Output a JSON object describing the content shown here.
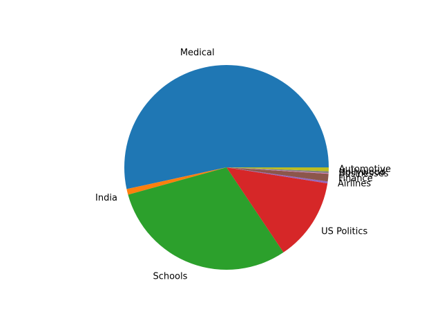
{
  "chart_data": {
    "type": "pie",
    "title": "",
    "categories": [
      "Medical",
      "India",
      "Schools",
      "US Politics",
      "Airlines",
      "Finance",
      "Businesses",
      "Hollywood",
      "Automotive"
    ],
    "values": [
      53.4,
      0.9,
      30.1,
      13.1,
      0.3,
      1.2,
      0.1,
      0.3,
      0.6
    ],
    "colors": [
      "#1f77b4",
      "#ff7f0e",
      "#2ca02c",
      "#d62728",
      "#9467bd",
      "#8c564b",
      "#e377c2",
      "#7f7f7f",
      "#bcbd22"
    ],
    "start_angle_deg": 0,
    "direction": "counterclockwise",
    "legend": "none",
    "labels_outside": true
  }
}
